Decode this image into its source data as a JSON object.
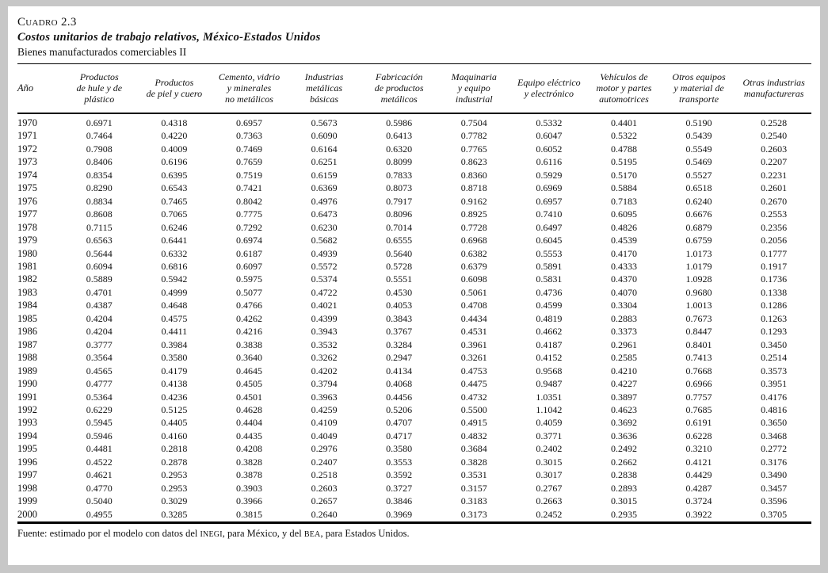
{
  "header": {
    "label": "Cuadro 2.3",
    "title": "Costos unitarios de trabajo relativos, México-Estados Unidos",
    "subtitle": "Bienes manufacturados comerciables II"
  },
  "table": {
    "columns": [
      "Año",
      "Productos\nde hule y de\nplástico",
      "Productos\nde piel y cuero",
      "Cemento, vidrio\ny minerales\nno metálicos",
      "Industrias\nmetálicas\nbásicas",
      "Fabricación\nde productos\nmetálicos",
      "Maquinaria\ny equipo\nindustrial",
      "Equipo eléctrico\ny electrónico",
      "Vehículos de\nmotor y partes\nautomotrices",
      "Otros equipos\ny material de\ntransporte",
      "Otras industrias\nmanufactureras"
    ],
    "rows": [
      {
        "year": "1970",
        "values": [
          "0.6971",
          "0.4318",
          "0.6957",
          "0.5673",
          "0.5986",
          "0.7504",
          "0.5332",
          "0.4401",
          "0.5190",
          "0.2528"
        ]
      },
      {
        "year": "1971",
        "values": [
          "0.7464",
          "0.4220",
          "0.7363",
          "0.6090",
          "0.6413",
          "0.7782",
          "0.6047",
          "0.5322",
          "0.5439",
          "0.2540"
        ]
      },
      {
        "year": "1972",
        "values": [
          "0.7908",
          "0.4009",
          "0.7469",
          "0.6164",
          "0.6320",
          "0.7765",
          "0.6052",
          "0.4788",
          "0.5549",
          "0.2603"
        ]
      },
      {
        "year": "1973",
        "values": [
          "0.8406",
          "0.6196",
          "0.7659",
          "0.6251",
          "0.8099",
          "0.8623",
          "0.6116",
          "0.5195",
          "0.5469",
          "0.2207"
        ]
      },
      {
        "year": "1974",
        "values": [
          "0.8354",
          "0.6395",
          "0.7519",
          "0.6159",
          "0.7833",
          "0.8360",
          "0.5929",
          "0.5170",
          "0.5527",
          "0.2231"
        ]
      },
      {
        "year": "1975",
        "values": [
          "0.8290",
          "0.6543",
          "0.7421",
          "0.6369",
          "0.8073",
          "0.8718",
          "0.6969",
          "0.5884",
          "0.6518",
          "0.2601"
        ]
      },
      {
        "year": "1976",
        "values": [
          "0.8834",
          "0.7465",
          "0.8042",
          "0.4976",
          "0.7917",
          "0.9162",
          "0.6957",
          "0.7183",
          "0.6240",
          "0.2670"
        ]
      },
      {
        "year": "1977",
        "values": [
          "0.8608",
          "0.7065",
          "0.7775",
          "0.6473",
          "0.8096",
          "0.8925",
          "0.7410",
          "0.6095",
          "0.6676",
          "0.2553"
        ]
      },
      {
        "year": "1978",
        "values": [
          "0.7115",
          "0.6246",
          "0.7292",
          "0.6230",
          "0.7014",
          "0.7728",
          "0.6497",
          "0.4826",
          "0.6879",
          "0.2356"
        ]
      },
      {
        "year": "1979",
        "values": [
          "0.6563",
          "0.6441",
          "0.6974",
          "0.5682",
          "0.6555",
          "0.6968",
          "0.6045",
          "0.4539",
          "0.6759",
          "0.2056"
        ]
      },
      {
        "year": "1980",
        "values": [
          "0.5644",
          "0.6332",
          "0.6187",
          "0.4939",
          "0.5640",
          "0.6382",
          "0.5553",
          "0.4170",
          "1.0173",
          "0.1777"
        ]
      },
      {
        "year": "1981",
        "values": [
          "0.6094",
          "0.6816",
          "0.6097",
          "0.5572",
          "0.5728",
          "0.6379",
          "0.5891",
          "0.4333",
          "1.0179",
          "0.1917"
        ]
      },
      {
        "year": "1982",
        "values": [
          "0.5889",
          "0.5942",
          "0.5975",
          "0.5374",
          "0.5551",
          "0.6098",
          "0.5831",
          "0.4370",
          "1.0928",
          "0.1736"
        ]
      },
      {
        "year": "1983",
        "values": [
          "0.4701",
          "0.4999",
          "0.5077",
          "0.4722",
          "0.4530",
          "0.5061",
          "0.4736",
          "0.4070",
          "0.9680",
          "0.1338"
        ]
      },
      {
        "year": "1984",
        "values": [
          "0.4387",
          "0.4648",
          "0.4766",
          "0.4021",
          "0.4053",
          "0.4708",
          "0.4599",
          "0.3304",
          "1.0013",
          "0.1286"
        ]
      },
      {
        "year": "1985",
        "values": [
          "0.4204",
          "0.4575",
          "0.4262",
          "0.4399",
          "0.3843",
          "0.4434",
          "0.4819",
          "0.2883",
          "0.7673",
          "0.1263"
        ]
      },
      {
        "year": "1986",
        "values": [
          "0.4204",
          "0.4411",
          "0.4216",
          "0.3943",
          "0.3767",
          "0.4531",
          "0.4662",
          "0.3373",
          "0.8447",
          "0.1293"
        ]
      },
      {
        "year": "1987",
        "values": [
          "0.3777",
          "0.3984",
          "0.3838",
          "0.3532",
          "0.3284",
          "0.3961",
          "0.4187",
          "0.2961",
          "0.8401",
          "0.3450"
        ]
      },
      {
        "year": "1988",
        "values": [
          "0.3564",
          "0.3580",
          "0.3640",
          "0.3262",
          "0.2947",
          "0.3261",
          "0.4152",
          "0.2585",
          "0.7413",
          "0.2514"
        ]
      },
      {
        "year": "1989",
        "values": [
          "0.4565",
          "0.4179",
          "0.4645",
          "0.4202",
          "0.4134",
          "0.4753",
          "0.9568",
          "0.4210",
          "0.7668",
          "0.3573"
        ]
      },
      {
        "year": "1990",
        "values": [
          "0.4777",
          "0.4138",
          "0.4505",
          "0.3794",
          "0.4068",
          "0.4475",
          "0.9487",
          "0.4227",
          "0.6966",
          "0.3951"
        ]
      },
      {
        "year": "1991",
        "values": [
          "0.5364",
          "0.4236",
          "0.4501",
          "0.3963",
          "0.4456",
          "0.4732",
          "1.0351",
          "0.3897",
          "0.7757",
          "0.4176"
        ]
      },
      {
        "year": "1992",
        "values": [
          "0.6229",
          "0.5125",
          "0.4628",
          "0.4259",
          "0.5206",
          "0.5500",
          "1.1042",
          "0.4623",
          "0.7685",
          "0.4816"
        ]
      },
      {
        "year": "1993",
        "values": [
          "0.5945",
          "0.4405",
          "0.4404",
          "0.4109",
          "0.4707",
          "0.4915",
          "0.4059",
          "0.3692",
          "0.6191",
          "0.3650"
        ]
      },
      {
        "year": "1994",
        "values": [
          "0.5946",
          "0.4160",
          "0.4435",
          "0.4049",
          "0.4717",
          "0.4832",
          "0.3771",
          "0.3636",
          "0.6228",
          "0.3468"
        ]
      },
      {
        "year": "1995",
        "values": [
          "0.4481",
          "0.2818",
          "0.4208",
          "0.2976",
          "0.3580",
          "0.3684",
          "0.2402",
          "0.2492",
          "0.3210",
          "0.2772"
        ]
      },
      {
        "year": "1996",
        "values": [
          "0.4522",
          "0.2878",
          "0.3828",
          "0.2407",
          "0.3553",
          "0.3828",
          "0.3015",
          "0.2662",
          "0.4121",
          "0.3176"
        ]
      },
      {
        "year": "1997",
        "values": [
          "0.4621",
          "0.2953",
          "0.3878",
          "0.2518",
          "0.3592",
          "0.3531",
          "0.3017",
          "0.2838",
          "0.4429",
          "0.3490"
        ]
      },
      {
        "year": "1998",
        "values": [
          "0.4770",
          "0.2953",
          "0.3903",
          "0.2603",
          "0.3727",
          "0.3157",
          "0.2767",
          "0.2893",
          "0.4287",
          "0.3457"
        ]
      },
      {
        "year": "1999",
        "values": [
          "0.5040",
          "0.3029",
          "0.3966",
          "0.2657",
          "0.3846",
          "0.3183",
          "0.2663",
          "0.3015",
          "0.3724",
          "0.3596"
        ]
      },
      {
        "year": "2000",
        "values": [
          "0.4955",
          "0.3285",
          "0.3815",
          "0.2640",
          "0.3969",
          "0.3173",
          "0.2452",
          "0.2935",
          "0.3922",
          "0.3705"
        ]
      }
    ]
  },
  "footnote": {
    "segments": [
      {
        "text": "Fuente: estimado por el modelo con datos del ",
        "smallcaps": false
      },
      {
        "text": "INEGI",
        "smallcaps": true
      },
      {
        "text": ", para México, y del ",
        "smallcaps": false
      },
      {
        "text": "BEA",
        "smallcaps": true
      },
      {
        "text": ", para Estados Unidos.",
        "smallcaps": false
      }
    ]
  }
}
